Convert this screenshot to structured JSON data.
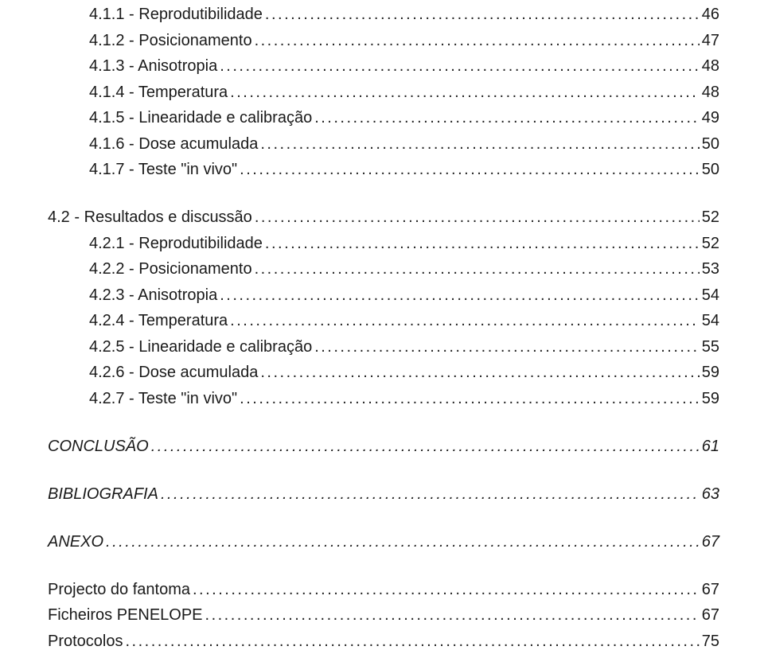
{
  "toc": {
    "font_family": "Arial",
    "font_size_pt": 15,
    "text_color": "#1a1a1a",
    "background_color": "#ffffff",
    "leader_char": ".",
    "entries": [
      {
        "label": "4.1.1 - Reprodutibilidade",
        "page": "46",
        "indent": "indent-1 first",
        "italic": false
      },
      {
        "label": "4.1.2 - Posicionamento",
        "page": "47",
        "indent": "indent-1",
        "italic": false
      },
      {
        "label": "4.1.3 - Anisotropia",
        "page": "48",
        "indent": "indent-1",
        "italic": false
      },
      {
        "label": "4.1.4 - Temperatura",
        "page": "48",
        "indent": "indent-1",
        "italic": false
      },
      {
        "label": "4.1.5 - Linearidade e calibração",
        "page": "49",
        "indent": "indent-1",
        "italic": false
      },
      {
        "label": "4.1.6 - Dose acumulada",
        "page": "50",
        "indent": "indent-1",
        "italic": false
      },
      {
        "label": "4.1.7 - Teste \"in vivo\"",
        "page": "50",
        "indent": "indent-1",
        "italic": false
      },
      {
        "label": "4.2 - Resultados e discussão",
        "page": "52",
        "indent": "indent-2",
        "italic": false,
        "gap_before": true
      },
      {
        "label": "4.2.1 - Reprodutibilidade",
        "page": "52",
        "indent": "indent-1",
        "italic": false
      },
      {
        "label": "4.2.2 - Posicionamento",
        "page": "53",
        "indent": "indent-1",
        "italic": false
      },
      {
        "label": "4.2.3 - Anisotropia",
        "page": "54",
        "indent": "indent-1",
        "italic": false
      },
      {
        "label": "4.2.4 - Temperatura",
        "page": "54",
        "indent": "indent-1",
        "italic": false
      },
      {
        "label": "4.2.5 - Linearidade e calibração",
        "page": "55",
        "indent": "indent-1",
        "italic": false
      },
      {
        "label": "4.2.6 - Dose acumulada",
        "page": "59",
        "indent": "indent-1",
        "italic": false
      },
      {
        "label": "4.2.7 - Teste \"in vivo\"",
        "page": "59",
        "indent": "indent-1",
        "italic": false
      },
      {
        "label": "CONCLUSÃO",
        "page": "61",
        "indent": "indent-0",
        "italic": true
      },
      {
        "label": "BIBLIOGRAFIA",
        "page": "63",
        "indent": "indent-0",
        "italic": true
      },
      {
        "label": "ANEXO",
        "page": "67",
        "indent": "indent-0",
        "italic": true
      },
      {
        "label": "Projecto do fantoma",
        "page": "67",
        "indent": "indent-2",
        "italic": false,
        "gap_before": true
      },
      {
        "label": "Ficheiros PENELOPE",
        "page": "67",
        "indent": "indent-2",
        "italic": false
      },
      {
        "label": "Protocolos",
        "page": "75",
        "indent": "indent-2",
        "italic": false
      }
    ]
  }
}
